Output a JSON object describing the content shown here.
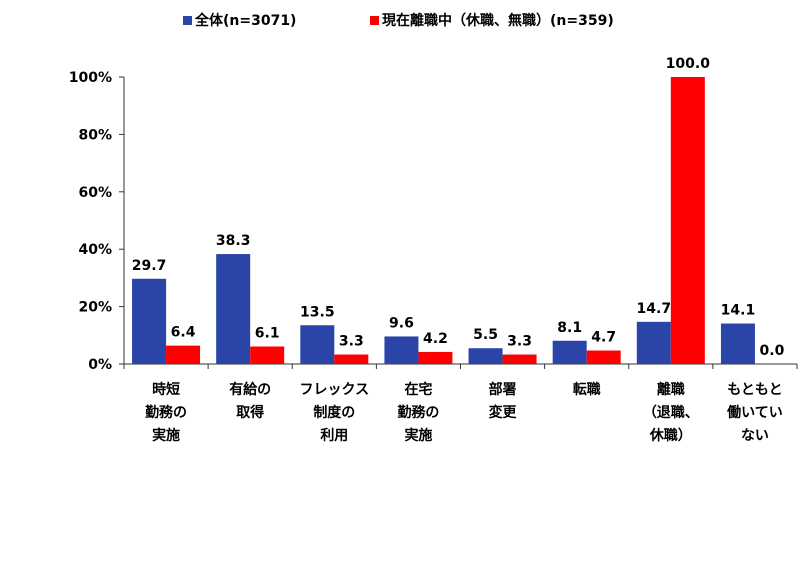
{
  "colors": {
    "series1": "#2a44a8",
    "series2": "#ff0000",
    "axis": "#333333",
    "text": "#000000"
  },
  "chart_data": {
    "type": "bar",
    "categories": [
      [
        "時短",
        "勤務の",
        "実施"
      ],
      [
        "有給の",
        "取得"
      ],
      [
        "フレックス",
        "制度の",
        "利用"
      ],
      [
        "在宅",
        "勤務の",
        "実施"
      ],
      [
        "部署",
        "変更"
      ],
      [
        "転職"
      ],
      [
        "離職",
        "（退職、",
        "休職）"
      ],
      [
        "もともと",
        "働いてい",
        "ない"
      ]
    ],
    "series": [
      {
        "name": "全体(n=3071)",
        "color": "#2a44a8",
        "values": [
          29.7,
          38.3,
          13.5,
          9.6,
          5.5,
          8.1,
          14.7,
          14.1
        ],
        "labels": [
          "29.7",
          "38.3",
          "13.5",
          "9.6",
          "5.5",
          "8.1",
          "14.7",
          "14.1"
        ]
      },
      {
        "name": "現在離職中（休職、無職）(n=359)",
        "color": "#ff0000",
        "values": [
          6.4,
          6.1,
          3.3,
          4.2,
          3.3,
          4.7,
          100.0,
          0.0
        ],
        "labels": [
          "6.4",
          "6.1",
          "3.3",
          "4.2",
          "3.3",
          "4.7",
          "100.0",
          "0.0"
        ]
      }
    ],
    "ylim": [
      0,
      100
    ],
    "yticks": [
      0,
      20,
      40,
      60,
      80,
      100
    ],
    "ytick_labels": [
      "0%",
      "20%",
      "40%",
      "60%",
      "80%",
      "100%"
    ],
    "legend": "top",
    "grid": false
  }
}
